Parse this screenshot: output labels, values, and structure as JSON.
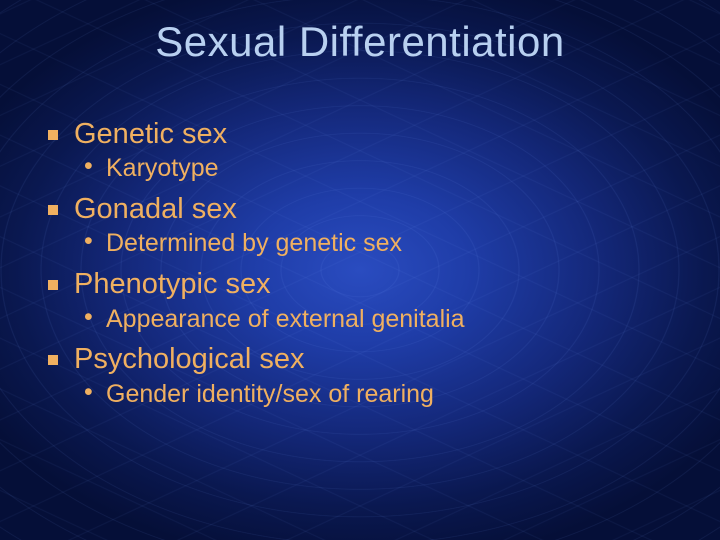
{
  "colors": {
    "title": "#b8d0f0",
    "text_primary": "#f0b060",
    "bullet_square": "#f0b060",
    "bullet_dot": "#f0b060"
  },
  "typography": {
    "title_fontsize": 42,
    "l1_fontsize": 29,
    "l2_fontsize": 25
  },
  "title": "Sexual Differentiation",
  "items": [
    {
      "label": "Genetic sex",
      "sub": "Karyotype"
    },
    {
      "label": "Gonadal sex",
      "sub": "Determined by genetic sex"
    },
    {
      "label": "Phenotypic sex",
      "sub": "Appearance of external genitalia"
    },
    {
      "label": "Psychological sex",
      "sub": "Gender identity/sex of rearing"
    }
  ]
}
